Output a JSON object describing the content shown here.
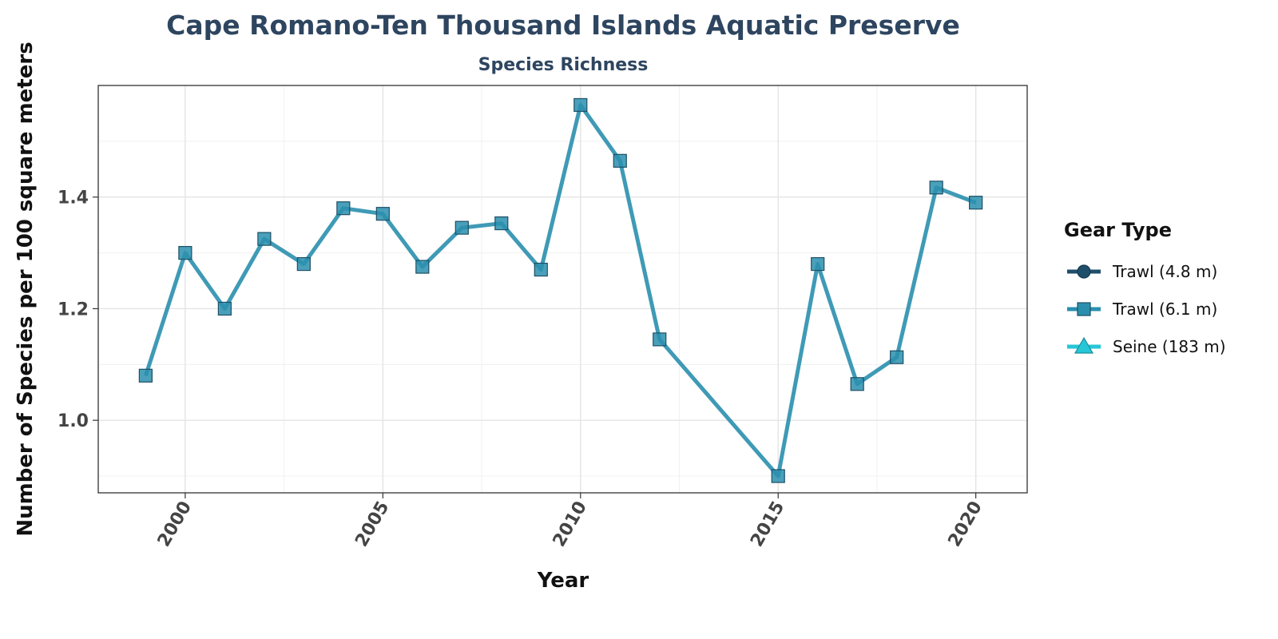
{
  "chart_data": {
    "type": "line",
    "title": "Cape Romano-Ten Thousand Islands Aquatic Preserve",
    "subtitle": "Species Richness",
    "xlabel": "Year",
    "ylabel": "Number of Species per 100 square meters",
    "xlim": [
      1997.8,
      2021.3
    ],
    "ylim": [
      0.87,
      1.6
    ],
    "x_ticks": [
      2000,
      2005,
      2010,
      2015,
      2020
    ],
    "y_ticks": [
      1.0,
      1.2,
      1.4
    ],
    "y_tick_labels": [
      "1.0",
      "1.2",
      "1.4"
    ],
    "grid": true,
    "legend": {
      "title": "Gear Type",
      "position": "right",
      "entries": [
        {
          "label": "Trawl (4.8 m)",
          "color": "#1f4e6b",
          "marker": "circle"
        },
        {
          "label": "Trawl (6.1 m)",
          "color": "#2a8fae",
          "marker": "square"
        },
        {
          "label": "Seine (183 m)",
          "color": "#26c6d6",
          "marker": "triangle"
        }
      ]
    },
    "series": [
      {
        "name": "Trawl (6.1 m)",
        "color": "#2a8fae",
        "marker": "square",
        "x": [
          1999,
          2000,
          2001,
          2002,
          2003,
          2004,
          2005,
          2006,
          2007,
          2008,
          2009,
          2010,
          2011,
          2012,
          2015,
          2016,
          2017,
          2018,
          2019,
          2020
        ],
        "y": [
          1.08,
          1.3,
          1.2,
          1.325,
          1.28,
          1.38,
          1.37,
          1.275,
          1.345,
          1.353,
          1.27,
          1.565,
          1.465,
          1.145,
          0.9,
          1.28,
          1.065,
          1.113,
          1.417,
          1.39
        ]
      }
    ]
  }
}
